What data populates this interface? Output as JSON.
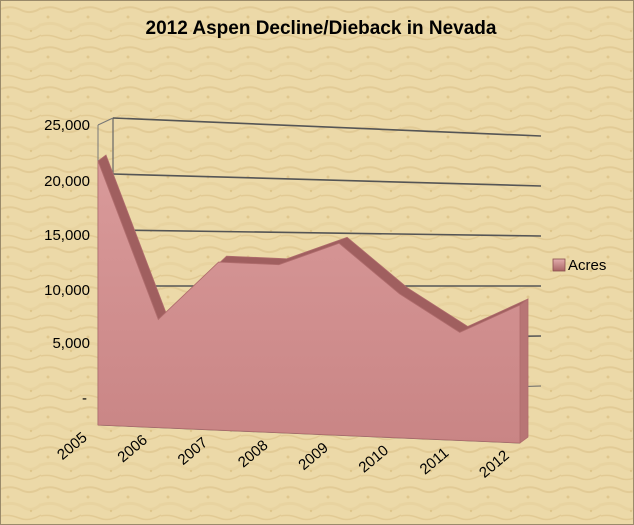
{
  "chart_data": {
    "type": "area",
    "title": "2012 Aspen Decline/Dieback in Nevada",
    "categories": [
      "2005",
      "2006",
      "2007",
      "2008",
      "2009",
      "2010",
      "2011",
      "2012"
    ],
    "series": [
      {
        "name": "Acres",
        "values": [
          22000,
          9000,
          14000,
          14000,
          16000,
          12000,
          9000,
          11500
        ]
      }
    ],
    "y_ticks": [
      "-",
      "5,000",
      "10,000",
      "15,000",
      "20,000",
      "25,000"
    ],
    "ylim": [
      0,
      25000
    ],
    "grid": true,
    "legend_position": "right",
    "colors": {
      "area_fill": "#cf8f8f",
      "area_top": "#a05f5f",
      "area_stroke": "#b06d6d",
      "grid": "#555555",
      "background": "#ecd9a8"
    }
  }
}
